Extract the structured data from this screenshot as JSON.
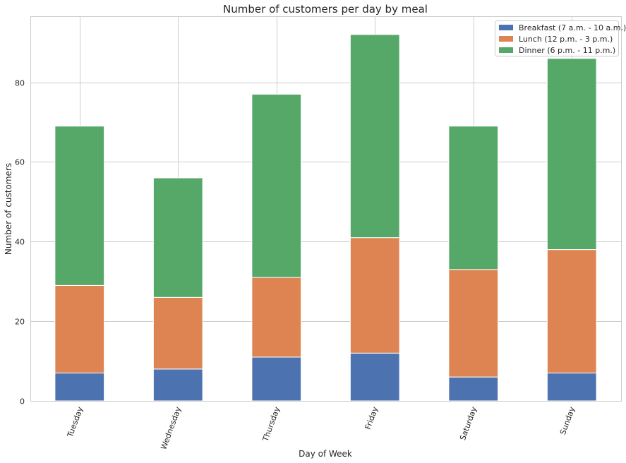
{
  "chart_data": {
    "type": "bar",
    "stacked": true,
    "title": "Number of customers per day by meal",
    "xlabel": "Day of Week",
    "ylabel": "Number of customers",
    "categories": [
      "Tuesday",
      "Wednesday",
      "Thursday",
      "Friday",
      "Saturday",
      "Sunday"
    ],
    "series": [
      {
        "name": "Breakfast (7 a.m. - 10 a.m.)",
        "color": "#4c72b0",
        "values": [
          7,
          8,
          11,
          12,
          6,
          7
        ]
      },
      {
        "name": "Lunch (12 p.m. - 3 p.m.)",
        "color": "#dd8452",
        "values": [
          22,
          18,
          20,
          29,
          27,
          31
        ]
      },
      {
        "name": "Dinner (6 p.m. - 11 p.m.)",
        "color": "#55a868",
        "values": [
          40,
          30,
          46,
          51,
          36,
          48
        ]
      }
    ],
    "ylim": [
      0,
      96.6
    ],
    "yticks": [
      0,
      20,
      40,
      60,
      80
    ],
    "grid": true,
    "legend_position": "top-right",
    "xtick_rotation": 70
  }
}
